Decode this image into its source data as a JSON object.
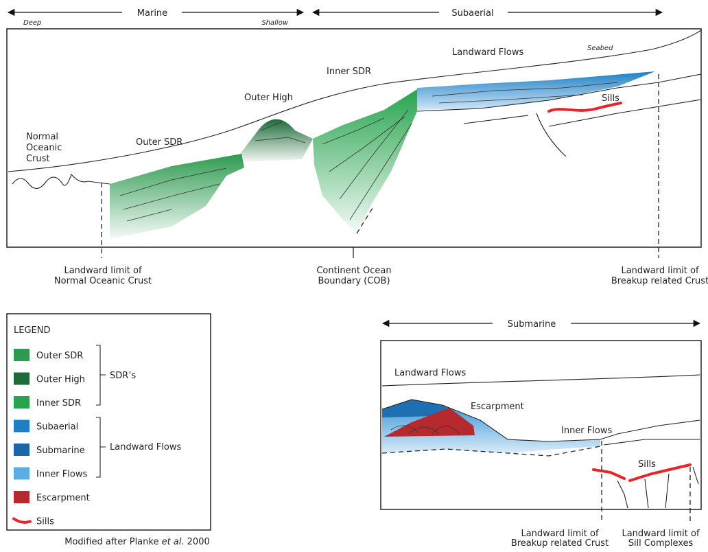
{
  "top_arrows": {
    "marine": "Marine",
    "deep": "Deep",
    "shallow": "Shallow",
    "subaerial": "Subaerial"
  },
  "main_section": {
    "landward_flows": "Landward Flows",
    "seabed": "Seabed",
    "inner_sdr": "Inner SDR",
    "outer_high": "Outer High",
    "sills": "Sills",
    "normal_oceanic_crust": [
      "Normal",
      "Oceanic",
      "Crust"
    ],
    "outer_sdr": "Outer SDR"
  },
  "main_limits": [
    [
      "Landward limit of",
      "Normal Oceanic Crust"
    ],
    [
      "Continent Ocean",
      "Boundary (COB)"
    ],
    [
      "Landward limit of",
      "Breakup related Crust"
    ]
  ],
  "legend": {
    "title": "LEGEND",
    "items": [
      "Outer SDR",
      "Outer High",
      "Inner SDR",
      "Subaerial",
      "Submarine",
      "Inner Flows",
      "Escarpment",
      "Sills"
    ],
    "groups": [
      "SDR’s",
      "Landward Flows"
    ]
  },
  "caption": [
    "Modified after Planke ",
    "et al.",
    " 2000"
  ],
  "detail_section": {
    "submarine": "Submarine",
    "landward_flows": "Landward Flows",
    "escarpment": "Escarpment",
    "inner_flows": "Inner Flows",
    "sills": "Sills",
    "limits": [
      [
        "Landward limit of",
        "Breakup related Crust"
      ],
      [
        "Landward limit of",
        "Sill Complexes"
      ]
    ]
  }
}
